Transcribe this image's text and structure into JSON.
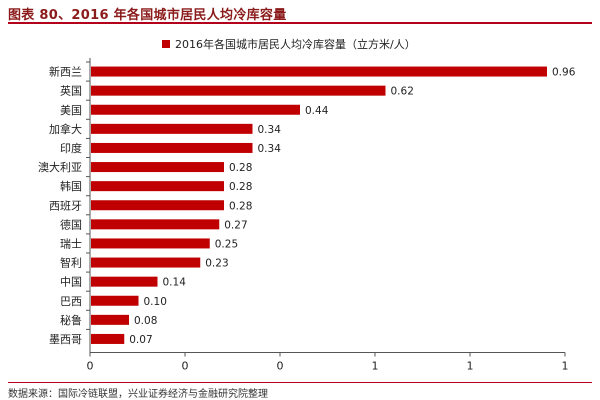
{
  "title": "图表 80、2016 年各国城市居民人均冷库容量",
  "source": "数据来源：国际冷链联盟，兴业证券经济与金融研究院整理",
  "colors": {
    "bar": "#c00000",
    "title": "#8b1a1a",
    "rule": "#b3001b"
  },
  "chart_data": {
    "type": "bar",
    "orientation": "horizontal",
    "legend": {
      "label": "2016年各国城市居民人均冷库容量（立方米/人）",
      "position": "top"
    },
    "categories": [
      "新西兰",
      "英国",
      "美国",
      "加拿大",
      "印度",
      "澳大利亚",
      "韩国",
      "西班牙",
      "德国",
      "瑞士",
      "智利",
      "中国",
      "巴西",
      "秘鲁",
      "墨西哥"
    ],
    "values": [
      0.96,
      0.62,
      0.44,
      0.34,
      0.34,
      0.28,
      0.28,
      0.28,
      0.27,
      0.25,
      0.23,
      0.14,
      0.1,
      0.08,
      0.07
    ],
    "value_labels": [
      "0.96",
      "0.62",
      "0.44",
      "0.34",
      "0.34",
      "0.28",
      "0.28",
      "0.28",
      "0.27",
      "0.25",
      "0.23",
      "0.14",
      "0.10",
      "0.08",
      "0.07"
    ],
    "xlim": [
      0,
      1
    ],
    "x_ticks": [
      0,
      0.2,
      0.4,
      0.6,
      0.8,
      1
    ],
    "x_tick_labels": [
      "0",
      "0",
      "0",
      "1",
      "1",
      "1"
    ],
    "grid": false
  }
}
